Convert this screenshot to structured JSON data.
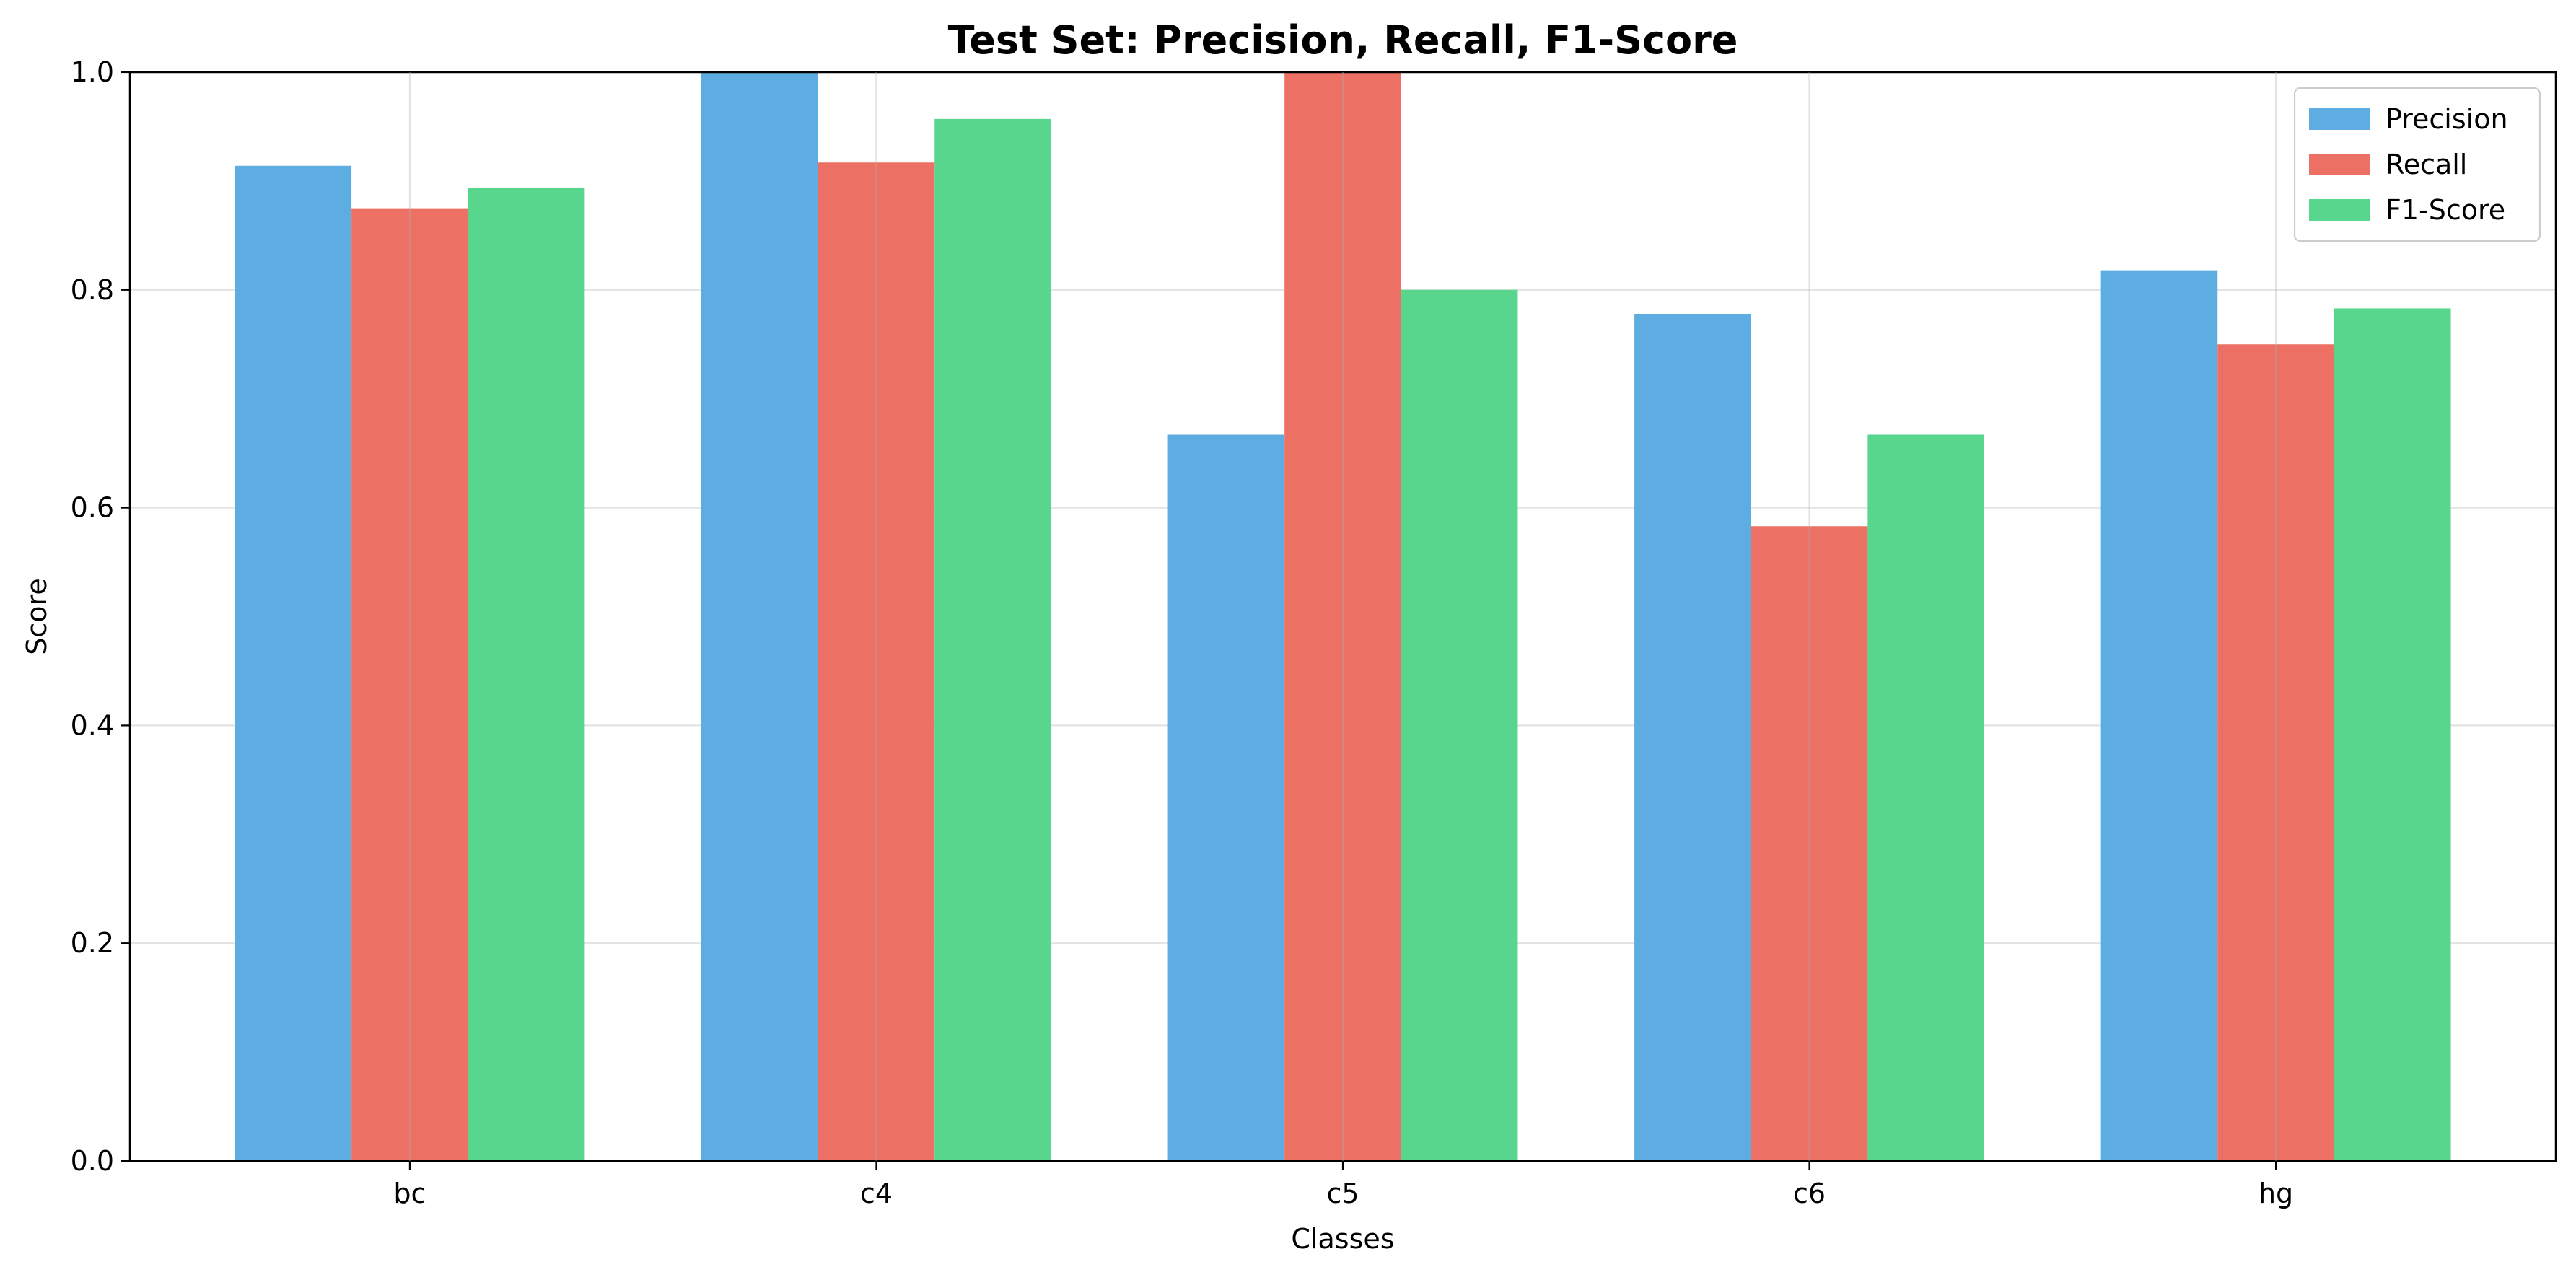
{
  "chart_data": {
    "type": "bar",
    "title": "Test Set: Precision, Recall, F1-Score",
    "xlabel": "Classes",
    "ylabel": "Score",
    "categories": [
      "bc",
      "c4",
      "c5",
      "c6",
      "hg"
    ],
    "ylim": [
      0,
      1.0
    ],
    "yticks": [
      0,
      0.2,
      0.4,
      0.6,
      0.8,
      1.0
    ],
    "ytick_labels": [
      "0.0",
      "0.2",
      "0.4",
      "0.6",
      "0.8",
      "1.0"
    ],
    "grid": true,
    "legend_position": "top-right",
    "series": [
      {
        "name": "Precision",
        "color": "#5dade2",
        "values": [
          0.914,
          1.0,
          0.667,
          0.778,
          0.818
        ]
      },
      {
        "name": "Recall",
        "color": "#ec7063",
        "values": [
          0.875,
          0.917,
          1.0,
          0.583,
          0.75
        ]
      },
      {
        "name": "F1-Score",
        "color": "#58d68d",
        "values": [
          0.894,
          0.957,
          0.8,
          0.667,
          0.783
        ]
      }
    ]
  }
}
